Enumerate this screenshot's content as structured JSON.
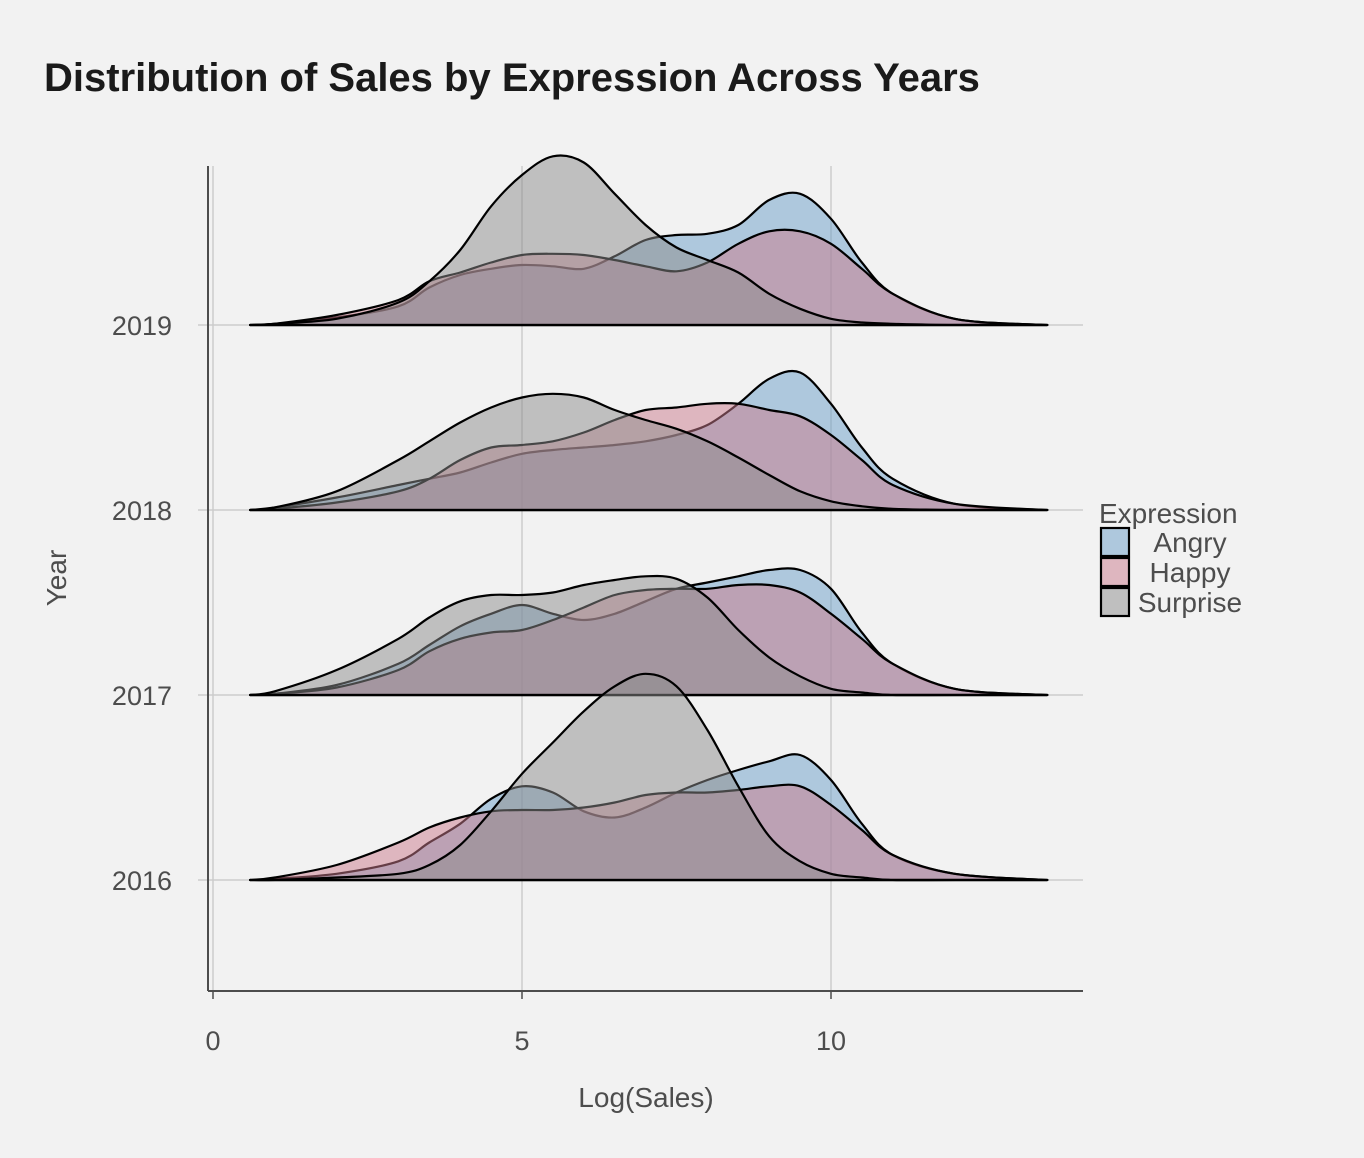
{
  "chart_data": {
    "type": "ridgeline",
    "title": "Distribution of Sales by Expression Across Years",
    "xlabel": "Log(Sales)",
    "ylabel": "Year",
    "x_ticks": [
      0,
      5,
      10
    ],
    "xlim": [
      0,
      14
    ],
    "y_categories": [
      "2016",
      "2017",
      "2018",
      "2019"
    ],
    "grid": true,
    "legend": {
      "title": "Expression",
      "position": "right",
      "entries": [
        "Angry",
        "Happy",
        "Surprise"
      ]
    },
    "colors": {
      "Angry": "#6a9ec7",
      "Happy": "#c97a8c",
      "Surprise": "#8c8c8c",
      "outline": "#000000",
      "grid": "#cccccc",
      "background": "#f2f2f2"
    },
    "x_grid": [
      0.6,
      1.0,
      2.0,
      3.0,
      3.5,
      4.0,
      4.5,
      5.0,
      5.5,
      6.0,
      6.5,
      7.0,
      7.5,
      8.0,
      8.5,
      9.0,
      9.5,
      10.0,
      10.5,
      11.0,
      12.0,
      13.5
    ],
    "series": [
      {
        "name": "Angry",
        "year": "2019",
        "density": [
          0,
          0.01,
          0.06,
          0.15,
          0.3,
          0.4,
          0.45,
          0.48,
          0.47,
          0.45,
          0.55,
          0.68,
          0.72,
          0.73,
          0.8,
          1.0,
          1.05,
          0.85,
          0.5,
          0.25,
          0.05,
          0
        ]
      },
      {
        "name": "Happy",
        "year": "2019",
        "density": [
          0,
          0.01,
          0.08,
          0.2,
          0.35,
          0.42,
          0.5,
          0.56,
          0.57,
          0.56,
          0.52,
          0.47,
          0.43,
          0.5,
          0.65,
          0.75,
          0.75,
          0.65,
          0.45,
          0.25,
          0.05,
          0
        ]
      },
      {
        "name": "Surprise",
        "year": "2019",
        "density": [
          0,
          0.01,
          0.05,
          0.18,
          0.35,
          0.6,
          0.95,
          1.2,
          1.35,
          1.3,
          1.05,
          0.8,
          0.62,
          0.52,
          0.42,
          0.25,
          0.13,
          0.05,
          0.02,
          0.01,
          0,
          0
        ]
      },
      {
        "name": "Angry",
        "year": "2018",
        "density": [
          0,
          0.02,
          0.1,
          0.2,
          0.25,
          0.3,
          0.38,
          0.45,
          0.48,
          0.5,
          0.52,
          0.55,
          0.6,
          0.68,
          0.85,
          1.05,
          1.1,
          0.85,
          0.5,
          0.25,
          0.05,
          0
        ]
      },
      {
        "name": "Happy",
        "year": "2018",
        "density": [
          0,
          0.01,
          0.06,
          0.15,
          0.25,
          0.4,
          0.5,
          0.52,
          0.55,
          0.62,
          0.72,
          0.8,
          0.82,
          0.85,
          0.85,
          0.8,
          0.75,
          0.6,
          0.4,
          0.2,
          0.05,
          0
        ]
      },
      {
        "name": "Surprise",
        "year": "2018",
        "density": [
          0,
          0.02,
          0.15,
          0.4,
          0.55,
          0.7,
          0.82,
          0.9,
          0.93,
          0.9,
          0.8,
          0.72,
          0.65,
          0.55,
          0.42,
          0.28,
          0.15,
          0.07,
          0.03,
          0.01,
          0,
          0
        ]
      },
      {
        "name": "Angry",
        "year": "2017",
        "density": [
          0,
          0.01,
          0.08,
          0.25,
          0.4,
          0.55,
          0.65,
          0.72,
          0.65,
          0.6,
          0.65,
          0.75,
          0.85,
          0.9,
          0.95,
          1.0,
          1.0,
          0.85,
          0.5,
          0.25,
          0.05,
          0
        ]
      },
      {
        "name": "Happy",
        "year": "2017",
        "density": [
          0,
          0.01,
          0.06,
          0.2,
          0.35,
          0.45,
          0.5,
          0.52,
          0.6,
          0.7,
          0.8,
          0.84,
          0.85,
          0.85,
          0.88,
          0.88,
          0.82,
          0.65,
          0.45,
          0.25,
          0.05,
          0
        ]
      },
      {
        "name": "Surprise",
        "year": "2017",
        "density": [
          0,
          0.03,
          0.2,
          0.45,
          0.62,
          0.75,
          0.8,
          0.8,
          0.82,
          0.88,
          0.92,
          0.95,
          0.93,
          0.78,
          0.52,
          0.3,
          0.15,
          0.05,
          0.02,
          0,
          0,
          0
        ]
      },
      {
        "name": "Angry",
        "year": "2016",
        "density": [
          0,
          0.01,
          0.05,
          0.15,
          0.3,
          0.45,
          0.65,
          0.75,
          0.7,
          0.55,
          0.5,
          0.58,
          0.7,
          0.8,
          0.88,
          0.95,
          1.0,
          0.8,
          0.45,
          0.2,
          0.05,
          0
        ]
      },
      {
        "name": "Happy",
        "year": "2016",
        "density": [
          0,
          0.02,
          0.12,
          0.3,
          0.42,
          0.5,
          0.55,
          0.56,
          0.56,
          0.58,
          0.62,
          0.68,
          0.7,
          0.7,
          0.72,
          0.75,
          0.75,
          0.6,
          0.4,
          0.2,
          0.05,
          0
        ]
      },
      {
        "name": "Surprise",
        "year": "2016",
        "density": [
          0,
          0,
          0.02,
          0.05,
          0.12,
          0.28,
          0.55,
          0.85,
          1.1,
          1.35,
          1.55,
          1.65,
          1.55,
          1.2,
          0.75,
          0.35,
          0.15,
          0.05,
          0.02,
          0,
          0,
          0
        ]
      }
    ]
  }
}
